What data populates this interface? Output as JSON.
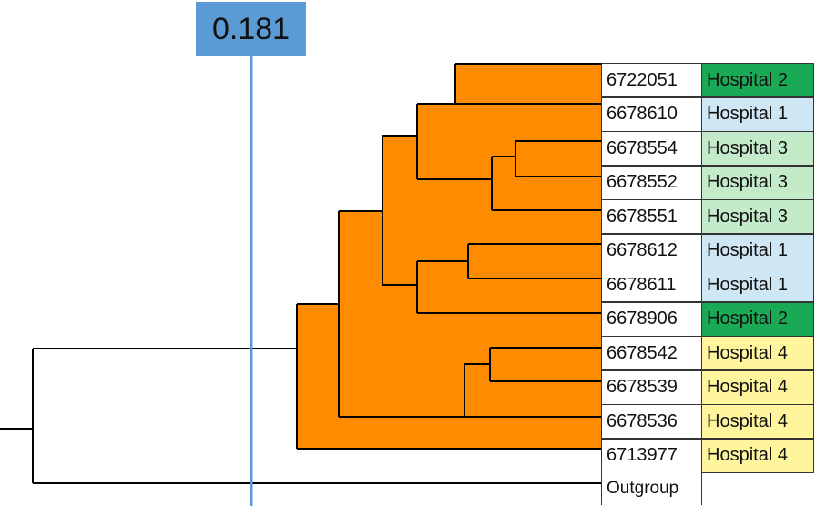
{
  "threshold": {
    "label": "0.181"
  },
  "colors": {
    "clade_fill": "#ff8c00",
    "threshold_line": "#5b9bd5",
    "Hospital 1": "#cfe6f4",
    "Hospital 2": "#1aaa55",
    "Hospital 3": "#c4ebc9",
    "Hospital 4": "#fff59d"
  },
  "leaves": [
    {
      "id": "6722051",
      "hospital": "Hospital 2"
    },
    {
      "id": "6678610",
      "hospital": "Hospital 1"
    },
    {
      "id": "6678554",
      "hospital": "Hospital 3"
    },
    {
      "id": "6678552",
      "hospital": "Hospital 3"
    },
    {
      "id": "6678551",
      "hospital": "Hospital 3"
    },
    {
      "id": "6678612",
      "hospital": "Hospital 1"
    },
    {
      "id": "6678611",
      "hospital": "Hospital 1"
    },
    {
      "id": "6678906",
      "hospital": "Hospital 2"
    },
    {
      "id": "6678542",
      "hospital": "Hospital 4"
    },
    {
      "id": "6678539",
      "hospital": "Hospital 4"
    },
    {
      "id": "6678536",
      "hospital": "Hospital 4"
    },
    {
      "id": "6713977",
      "hospital": "Hospital 4"
    }
  ],
  "outgroup": {
    "label": "Outgroup"
  }
}
